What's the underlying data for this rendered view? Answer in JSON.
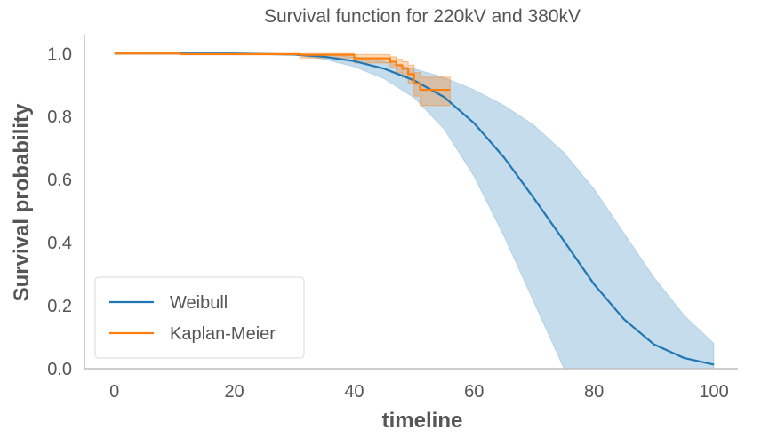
{
  "chart_data": {
    "type": "line",
    "title": "Survival function for 220kV and 380kV",
    "xlabel": "timeline",
    "ylabel": "Survival probability",
    "xlim": [
      -5,
      104
    ],
    "ylim": [
      0,
      1.06
    ],
    "xticks": [
      0,
      20,
      40,
      60,
      80,
      100
    ],
    "yticks": [
      0.0,
      0.2,
      0.4,
      0.6,
      0.8,
      1.0
    ],
    "xtick_labels": [
      "0",
      "20",
      "40",
      "60",
      "80",
      "100"
    ],
    "ytick_labels": [
      "0.0",
      "0.2",
      "0.4",
      "0.6",
      "0.8",
      "1.0"
    ],
    "grid": false,
    "legend_position": "lower-left",
    "series": [
      {
        "name": "Weibull",
        "color": "#1f77b4",
        "style": "line",
        "x": [
          0,
          10,
          20,
          30,
          35,
          40,
          45,
          50,
          55,
          60,
          65,
          70,
          75,
          80,
          85,
          90,
          95,
          100
        ],
        "y": [
          1.0,
          1.0,
          1.0,
          0.997,
          0.99,
          0.976,
          0.952,
          0.915,
          0.862,
          0.779,
          0.67,
          0.54,
          0.405,
          0.268,
          0.157,
          0.077,
          0.034,
          0.013
        ],
        "ci_lower": [
          1.0,
          1.0,
          1.0,
          0.995,
          0.982,
          0.958,
          0.92,
          0.86,
          0.76,
          0.61,
          0.42,
          0.21,
          0.0,
          0.0,
          0.0,
          0.0,
          0.0,
          0.0
        ],
        "ci_upper": [
          1.0,
          1.0,
          1.0,
          0.999,
          0.997,
          0.99,
          0.975,
          0.952,
          0.924,
          0.885,
          0.835,
          0.772,
          0.685,
          0.57,
          0.43,
          0.29,
          0.17,
          0.08
        ]
      },
      {
        "name": "Kaplan-Meier",
        "color": "#ff7f0e",
        "style": "step",
        "x": [
          0,
          11,
          31,
          40,
          46,
          47,
          48,
          49,
          50,
          51,
          56
        ],
        "y": [
          1.0,
          0.998,
          0.996,
          0.985,
          0.974,
          0.963,
          0.952,
          0.935,
          0.905,
          0.885,
          0.885
        ],
        "ci_lower": [
          1.0,
          0.997,
          0.986,
          0.97,
          0.955,
          0.94,
          0.925,
          0.905,
          0.865,
          0.835,
          0.835
        ],
        "ci_upper": [
          1.0,
          1.0,
          1.0,
          0.997,
          0.99,
          0.982,
          0.974,
          0.963,
          0.94,
          0.925,
          0.925
        ]
      }
    ]
  }
}
